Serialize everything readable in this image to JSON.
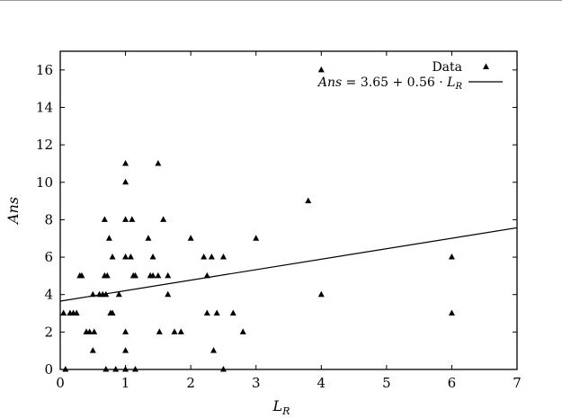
{
  "chart_data": {
    "type": "scatter",
    "title": "",
    "xlabel_main": "L",
    "xlabel_sub": "R",
    "ylabel": "Ans",
    "xlim": [
      0,
      7
    ],
    "ylim": [
      0,
      17
    ],
    "x_ticks": [
      0,
      1,
      2,
      3,
      4,
      5,
      6,
      7
    ],
    "y_ticks": [
      0,
      2,
      4,
      6,
      8,
      10,
      12,
      14,
      16
    ],
    "grid": false,
    "legend_position": "top-right",
    "series": [
      {
        "name": "Data",
        "marker": "triangle",
        "points": [
          [
            0.05,
            3
          ],
          [
            0.08,
            0
          ],
          [
            0.15,
            3
          ],
          [
            0.2,
            3
          ],
          [
            0.25,
            3
          ],
          [
            0.3,
            5
          ],
          [
            0.33,
            5
          ],
          [
            0.4,
            2
          ],
          [
            0.45,
            2
          ],
          [
            0.5,
            4
          ],
          [
            0.5,
            1
          ],
          [
            0.52,
            2
          ],
          [
            0.6,
            4
          ],
          [
            0.65,
            4
          ],
          [
            0.68,
            8
          ],
          [
            0.7,
            4
          ],
          [
            0.68,
            5
          ],
          [
            0.72,
            5
          ],
          [
            0.75,
            7
          ],
          [
            0.77,
            3
          ],
          [
            0.8,
            3
          ],
          [
            0.8,
            6
          ],
          [
            0.7,
            0
          ],
          [
            0.85,
            0
          ],
          [
            0.9,
            4
          ],
          [
            1.0,
            11
          ],
          [
            1.0,
            10
          ],
          [
            1.0,
            8
          ],
          [
            1.0,
            6
          ],
          [
            1.0,
            2
          ],
          [
            1.0,
            1
          ],
          [
            1.0,
            0
          ],
          [
            1.08,
            6
          ],
          [
            1.1,
            8
          ],
          [
            1.12,
            5
          ],
          [
            1.15,
            5
          ],
          [
            1.15,
            0
          ],
          [
            1.35,
            7
          ],
          [
            1.38,
            5
          ],
          [
            1.42,
            5
          ],
          [
            1.42,
            6
          ],
          [
            1.5,
            11
          ],
          [
            1.5,
            5
          ],
          [
            1.52,
            2
          ],
          [
            1.58,
            8
          ],
          [
            1.65,
            5
          ],
          [
            1.65,
            4
          ],
          [
            1.75,
            2
          ],
          [
            1.85,
            2
          ],
          [
            2.0,
            7
          ],
          [
            2.2,
            6
          ],
          [
            2.25,
            5
          ],
          [
            2.25,
            3
          ],
          [
            2.32,
            6
          ],
          [
            2.35,
            1
          ],
          [
            2.4,
            3
          ],
          [
            2.5,
            6
          ],
          [
            2.5,
            0
          ],
          [
            2.65,
            3
          ],
          [
            2.8,
            2
          ],
          [
            3.0,
            7
          ],
          [
            3.8,
            9
          ],
          [
            4.0,
            16
          ],
          [
            4.0,
            4
          ],
          [
            6.0,
            6
          ],
          [
            6.0,
            3
          ]
        ]
      },
      {
        "name": "Ans = 3.65 + 0.56 · L_R",
        "type": "line",
        "intercept": 3.65,
        "slope": 0.56
      }
    ],
    "legend": {
      "data_label": "Data",
      "fit_label": "Ans = 3.65 + 0.56 · L"
    }
  }
}
